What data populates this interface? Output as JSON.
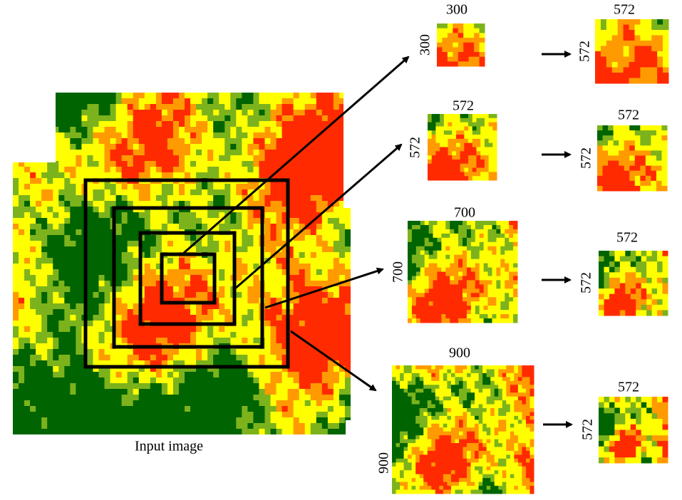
{
  "input_label": "Input image",
  "crops": [
    {
      "width": "300",
      "height": "300",
      "resized_width": "572",
      "resized_height": "572"
    },
    {
      "width": "572",
      "height": "572",
      "resized_width": "572",
      "resized_height": "572"
    },
    {
      "width": "700",
      "height": "700",
      "resized_width": "572",
      "resized_height": "572"
    },
    {
      "width": "900",
      "height": "900",
      "resized_width": "572",
      "resized_height": "572"
    }
  ]
}
